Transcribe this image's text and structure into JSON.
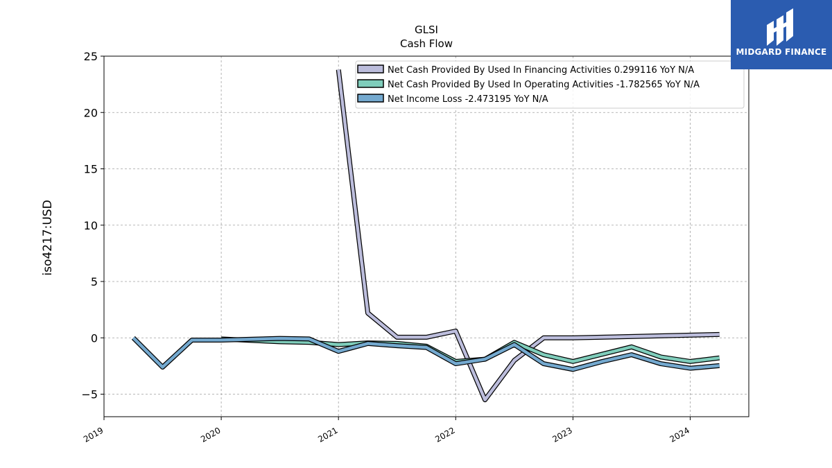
{
  "chart_data": {
    "type": "line",
    "title": "GLSI",
    "subtitle": "Cash Flow",
    "ylabel": "iso4217:USD",
    "xlabel": "",
    "xlim": [
      2019.0,
      2024.5
    ],
    "ylim": [
      -7,
      25
    ],
    "yticks": [
      -5,
      0,
      5,
      10,
      15,
      20,
      25
    ],
    "ytick_labels": [
      "−5",
      "0",
      "5",
      "10",
      "15",
      "20",
      "25"
    ],
    "xticks": [
      2019,
      2020,
      2021,
      2022,
      2023,
      2024
    ],
    "xtick_labels": [
      "2019",
      "2020",
      "2021",
      "2022",
      "2023",
      "2024"
    ],
    "grid": true,
    "legend_position": "top-right",
    "series": [
      {
        "name": "Net Cash Provided By Used In Financing Activities  0.299116 YoY N/A",
        "color": "#bcbddc",
        "x": [
          2021.0,
          2021.25,
          2021.5,
          2021.75,
          2022.0,
          2022.25,
          2022.5,
          2022.75,
          2023.0,
          2024.25
        ],
        "values": [
          23.8,
          2.2,
          0.05,
          0.05,
          0.6,
          -5.5,
          -2.0,
          0.0,
          0.0,
          0.3
        ]
      },
      {
        "name": "Net Cash Provided By Used In Operating Activities  -1.782565 YoY N/A",
        "color": "#7fcdbb",
        "x": [
          2020.0,
          2020.5,
          2020.75,
          2021.0,
          2021.25,
          2021.5,
          2021.75,
          2022.0,
          2022.25,
          2022.5,
          2022.75,
          2023.0,
          2023.5,
          2023.75,
          2024.0,
          2024.25
        ],
        "values": [
          -0.1,
          -0.35,
          -0.4,
          -0.6,
          -0.45,
          -0.5,
          -0.75,
          -2.1,
          -1.9,
          -0.4,
          -1.5,
          -2.1,
          -0.8,
          -1.7,
          -2.1,
          -1.78
        ]
      },
      {
        "name": "Net Income Loss  -2.473195 YoY N/A",
        "color": "#74a9cf",
        "x": [
          2019.25,
          2019.5,
          2019.75,
          2020.0,
          2020.5,
          2020.75,
          2021.0,
          2021.25,
          2021.5,
          2021.75,
          2022.0,
          2022.25,
          2022.5,
          2022.75,
          2023.0,
          2023.25,
          2023.5,
          2023.75,
          2024.0,
          2024.25
        ],
        "values": [
          0.0,
          -2.6,
          -0.2,
          -0.2,
          -0.05,
          -0.1,
          -1.2,
          -0.5,
          -0.7,
          -0.85,
          -2.3,
          -1.9,
          -0.6,
          -2.3,
          -2.8,
          -2.1,
          -1.5,
          -2.3,
          -2.7,
          -2.47
        ]
      }
    ]
  },
  "logo": {
    "text": "MIDGARD FINANCE",
    "background": "#2b5cb0"
  }
}
